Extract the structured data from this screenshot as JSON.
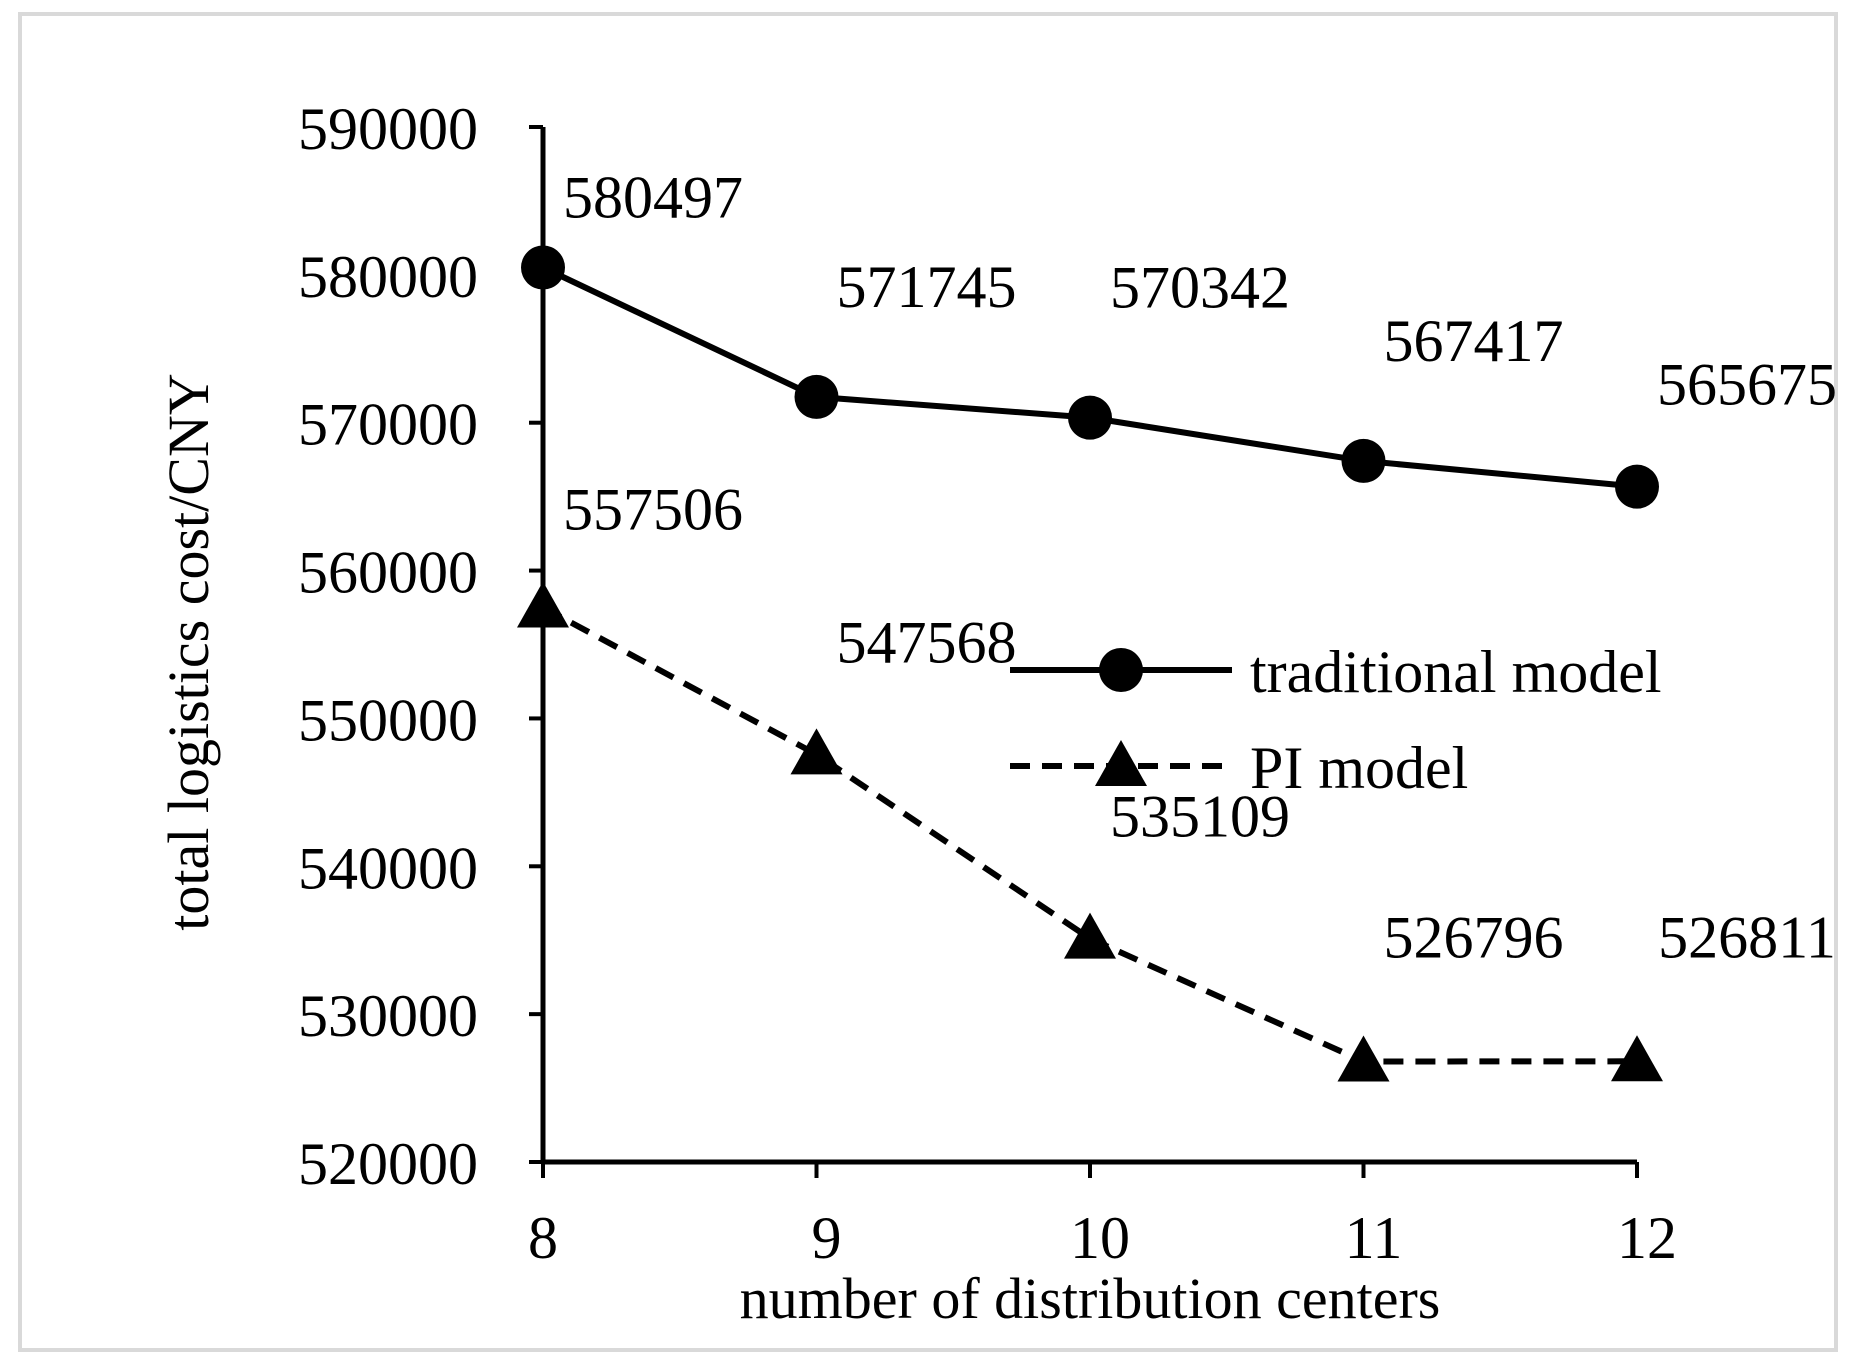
{
  "chart_data": {
    "type": "line",
    "title": "",
    "xlabel": "number of distribution centers",
    "ylabel": "total logistics cost/CNY",
    "x": [
      8,
      9,
      10,
      11,
      12
    ],
    "ylim": [
      520000,
      590000
    ],
    "yticks": [
      520000,
      530000,
      540000,
      550000,
      560000,
      570000,
      580000,
      590000
    ],
    "grid": false,
    "legend_position": "center-right",
    "series": [
      {
        "name": "traditional model",
        "values": [
          580497,
          571745,
          570342,
          567417,
          565675
        ],
        "marker": "circle",
        "line_style": "solid",
        "color": "#000000"
      },
      {
        "name": "PI model",
        "values": [
          557506,
          547568,
          535109,
          526796,
          526811
        ],
        "marker": "triangle",
        "line_style": "dashed",
        "color": "#000000"
      }
    ]
  }
}
